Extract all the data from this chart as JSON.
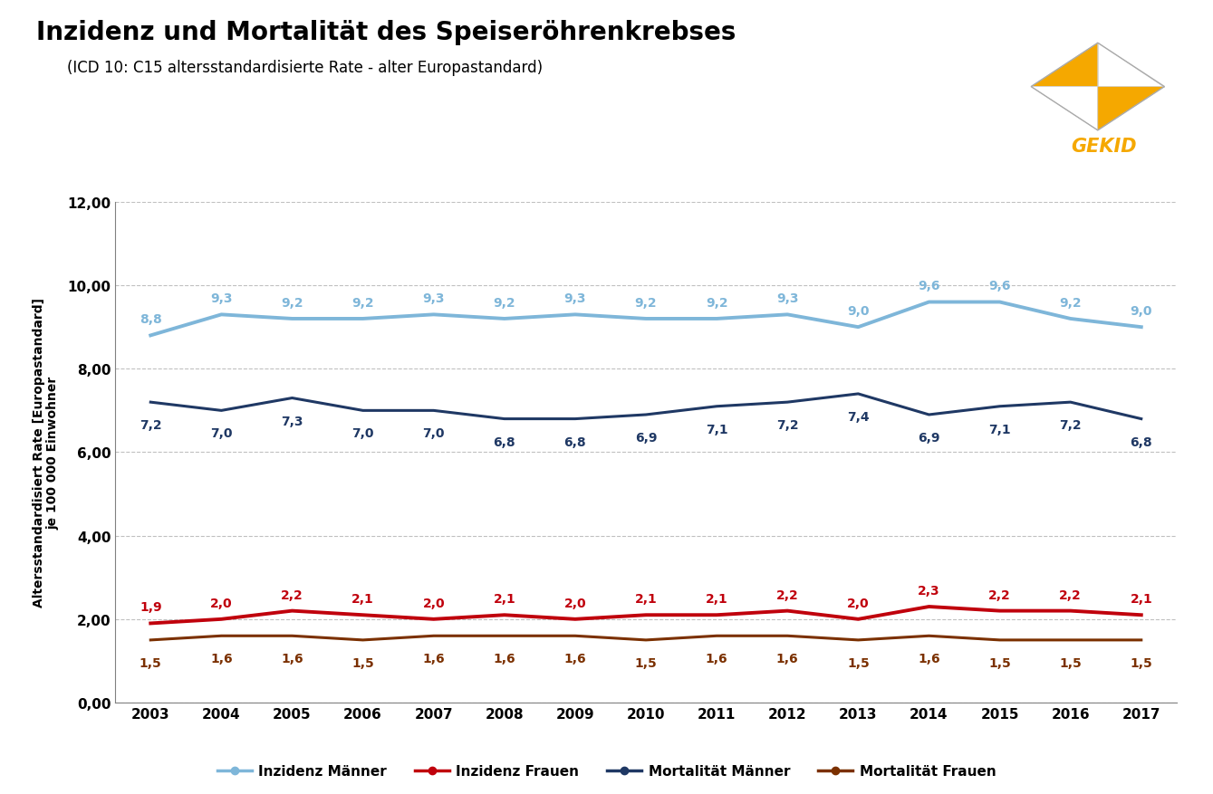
{
  "title": "Inzidenz und Mortalität des Speiseröhrenkrebses",
  "subtitle": "(ICD 10: C15 altersstandardisierte Rate - alter Europastandard)",
  "ylabel": "Altersstandardisiert Rate [Europastandard]\nje 100 000 Einwohner",
  "years": [
    2003,
    2004,
    2005,
    2006,
    2007,
    2008,
    2009,
    2010,
    2011,
    2012,
    2013,
    2014,
    2015,
    2016,
    2017
  ],
  "inzidenz_maenner": [
    8.8,
    9.3,
    9.2,
    9.2,
    9.3,
    9.2,
    9.3,
    9.2,
    9.2,
    9.3,
    9.0,
    9.6,
    9.6,
    9.2,
    9.0
  ],
  "inzidenz_frauen": [
    1.9,
    2.0,
    2.2,
    2.1,
    2.0,
    2.1,
    2.0,
    2.1,
    2.1,
    2.2,
    2.0,
    2.3,
    2.2,
    2.2,
    2.1
  ],
  "mortalitaet_maenner": [
    7.2,
    7.0,
    7.3,
    7.0,
    7.0,
    6.8,
    6.8,
    6.9,
    7.1,
    7.2,
    7.4,
    6.9,
    7.1,
    7.2,
    6.8
  ],
  "mortalitaet_frauen": [
    1.5,
    1.6,
    1.6,
    1.5,
    1.6,
    1.6,
    1.6,
    1.5,
    1.6,
    1.6,
    1.5,
    1.6,
    1.5,
    1.5,
    1.5
  ],
  "color_inzidenz_maenner": "#7EB6D9",
  "color_inzidenz_frauen": "#C0000C",
  "color_mortalitaet_maenner": "#1F3864",
  "color_mortalitaet_frauen": "#7B3000",
  "ylim": [
    0,
    12
  ],
  "yticks": [
    0.0,
    2.0,
    4.0,
    6.0,
    8.0,
    10.0,
    12.0
  ],
  "ytick_labels": [
    "0,00",
    "2,00",
    "4,00",
    "6,00",
    "8,00",
    "10,00",
    "12,00"
  ],
  "legend_labels": [
    "Inzidenz Männer",
    "Inzidenz Frauen",
    "Mortalität Männer",
    "Mortalität Frauen"
  ],
  "background_color": "#FFFFFF",
  "plot_area_color": "#FFFFFF",
  "grid_color": "#C0C0C0",
  "title_fontsize": 20,
  "subtitle_fontsize": 12,
  "label_fontsize": 10,
  "tick_fontsize": 11,
  "annotation_fontsize": 10
}
